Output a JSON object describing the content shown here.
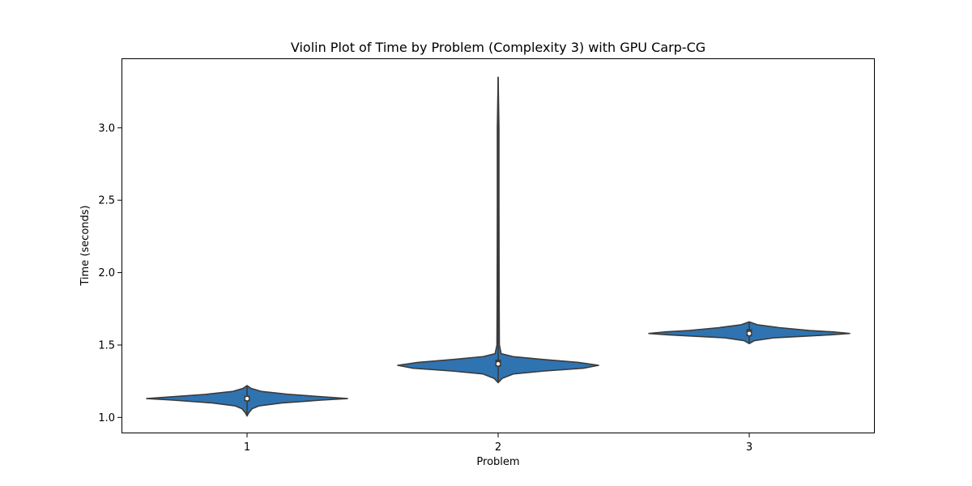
{
  "chart_data": {
    "type": "violin",
    "title": "Violin Plot of Time by Problem (Complexity 3) with GPU Carp-CG",
    "xlabel": "Problem",
    "ylabel": "Time (seconds)",
    "categories": [
      "1",
      "2",
      "3"
    ],
    "ylim": [
      0.89,
      3.48
    ],
    "yticks": [
      "1.0",
      "1.5",
      "2.0",
      "2.5",
      "3.0"
    ],
    "grid": false,
    "legend": "none",
    "colors": {
      "fill": "#2f74b1",
      "edge": "#3b3b3b",
      "median": "#ffffff",
      "box": "#3b3b3b"
    },
    "violins": [
      {
        "category": "1",
        "min": 1.01,
        "q1": 1.11,
        "median": 1.13,
        "q3": 1.15,
        "max": 1.22,
        "profile": [
          [
            1.01,
            0.0
          ],
          [
            1.03,
            0.015
          ],
          [
            1.06,
            0.05
          ],
          [
            1.08,
            0.12
          ],
          [
            1.1,
            0.35
          ],
          [
            1.12,
            0.75
          ],
          [
            1.13,
            1.0
          ],
          [
            1.14,
            0.8
          ],
          [
            1.16,
            0.4
          ],
          [
            1.18,
            0.14
          ],
          [
            1.2,
            0.04
          ],
          [
            1.22,
            0.0
          ]
        ]
      },
      {
        "category": "2",
        "min": 1.24,
        "q1": 1.35,
        "median": 1.37,
        "q3": 1.4,
        "max": 3.35,
        "profile": [
          [
            1.24,
            0.0
          ],
          [
            1.27,
            0.04
          ],
          [
            1.3,
            0.15
          ],
          [
            1.32,
            0.45
          ],
          [
            1.34,
            0.85
          ],
          [
            1.36,
            1.0
          ],
          [
            1.38,
            0.8
          ],
          [
            1.4,
            0.45
          ],
          [
            1.42,
            0.15
          ],
          [
            1.44,
            0.03
          ],
          [
            1.5,
            0.012
          ],
          [
            1.8,
            0.01
          ],
          [
            2.5,
            0.008
          ],
          [
            3.0,
            0.008
          ],
          [
            3.35,
            0.0
          ]
        ]
      },
      {
        "category": "3",
        "min": 1.51,
        "q1": 1.56,
        "median": 1.58,
        "q3": 1.61,
        "max": 1.66,
        "profile": [
          [
            1.51,
            0.0
          ],
          [
            1.53,
            0.05
          ],
          [
            1.55,
            0.25
          ],
          [
            1.57,
            0.8
          ],
          [
            1.58,
            1.0
          ],
          [
            1.59,
            0.85
          ],
          [
            1.6,
            0.6
          ],
          [
            1.62,
            0.3
          ],
          [
            1.64,
            0.08
          ],
          [
            1.66,
            0.0
          ]
        ]
      }
    ]
  }
}
